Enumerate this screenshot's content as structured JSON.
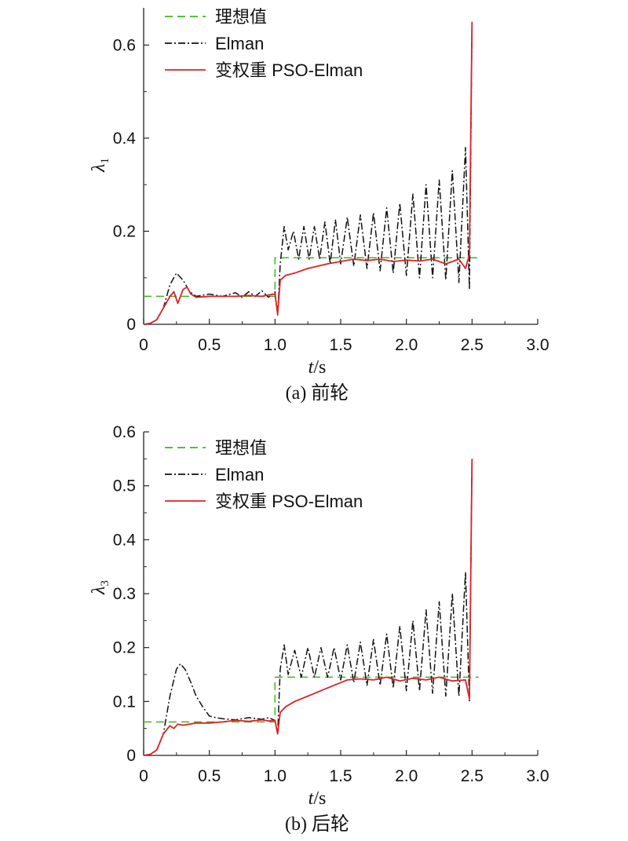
{
  "chart_data": [
    {
      "type": "line",
      "caption": "(a) 前轮",
      "xlabel_italic": "t",
      "xlabel_unit": "/s",
      "ylabel_main": "λ",
      "ylabel_sub": "1",
      "xlim": [
        0,
        3.0
      ],
      "ylim": [
        0,
        0.68
      ],
      "xticks": [
        "0",
        "0.5",
        "1.0",
        "1.5",
        "2.0",
        "2.5",
        "3.0"
      ],
      "yticks": [
        {
          "value": 0,
          "label": "0"
        },
        {
          "value": 0.2,
          "label": "0.2"
        },
        {
          "value": 0.4,
          "label": "0.4"
        },
        {
          "value": 0.6,
          "label": "0.6"
        }
      ],
      "legend_position": "top-left",
      "grid": false,
      "series": [
        {
          "name": "理想值",
          "color": "#3cb81e",
          "style": "dashed",
          "x": [
            0,
            1.0,
            1.0,
            2.55
          ],
          "y": [
            0.06,
            0.06,
            0.143,
            0.143
          ]
        },
        {
          "name": "Elman",
          "color": "#111111",
          "style": "dashdot",
          "x": [
            0.0,
            0.05,
            0.1,
            0.15,
            0.2,
            0.25,
            0.3,
            0.35,
            0.4,
            0.5,
            0.6,
            0.7,
            0.75,
            0.8,
            0.85,
            0.9,
            0.95,
            1.0,
            1.02,
            1.04,
            1.07,
            1.1,
            1.14,
            1.18,
            1.22,
            1.26,
            1.3,
            1.34,
            1.38,
            1.42,
            1.46,
            1.5,
            1.55,
            1.6,
            1.65,
            1.7,
            1.75,
            1.8,
            1.85,
            1.9,
            1.95,
            2.0,
            2.05,
            2.1,
            2.15,
            2.2,
            2.25,
            2.3,
            2.35,
            2.4,
            2.45,
            2.48,
            2.5
          ],
          "y": [
            0.0,
            0.002,
            0.01,
            0.035,
            0.085,
            0.11,
            0.095,
            0.07,
            0.06,
            0.065,
            0.06,
            0.068,
            0.058,
            0.07,
            0.06,
            0.072,
            0.058,
            0.07,
            0.02,
            0.13,
            0.21,
            0.16,
            0.2,
            0.14,
            0.21,
            0.14,
            0.21,
            0.14,
            0.22,
            0.13,
            0.225,
            0.13,
            0.23,
            0.125,
            0.235,
            0.12,
            0.24,
            0.115,
            0.25,
            0.11,
            0.26,
            0.105,
            0.28,
            0.1,
            0.3,
            0.1,
            0.31,
            0.095,
            0.33,
            0.09,
            0.38,
            0.075,
            0.65
          ]
        },
        {
          "name": "变权重 PSO-Elman",
          "color": "#e11f26",
          "style": "solid",
          "x": [
            0.0,
            0.05,
            0.1,
            0.15,
            0.2,
            0.23,
            0.26,
            0.3,
            0.33,
            0.36,
            0.4,
            0.5,
            0.6,
            0.7,
            0.8,
            0.9,
            0.95,
            1.0,
            1.02,
            1.04,
            1.08,
            1.15,
            1.25,
            1.4,
            1.5,
            1.6,
            1.7,
            1.8,
            1.9,
            2.0,
            2.1,
            2.2,
            2.3,
            2.4,
            2.45,
            2.48,
            2.5
          ],
          "y": [
            0.0,
            0.002,
            0.01,
            0.035,
            0.06,
            0.07,
            0.045,
            0.075,
            0.08,
            0.065,
            0.058,
            0.06,
            0.06,
            0.06,
            0.062,
            0.06,
            0.063,
            0.065,
            0.022,
            0.095,
            0.105,
            0.11,
            0.12,
            0.13,
            0.135,
            0.14,
            0.137,
            0.14,
            0.135,
            0.138,
            0.136,
            0.14,
            0.13,
            0.14,
            0.12,
            0.15,
            0.65
          ]
        }
      ]
    },
    {
      "type": "line",
      "caption": "(b) 后轮",
      "xlabel_italic": "t",
      "xlabel_unit": "/s",
      "ylabel_main": "λ",
      "ylabel_sub": "3",
      "xlim": [
        0,
        3.0
      ],
      "ylim": [
        0,
        0.6
      ],
      "xticks": [
        "0",
        "0.5",
        "1.0",
        "1.5",
        "2.0",
        "2.5",
        "3.0"
      ],
      "yticks": [
        {
          "value": 0,
          "label": "0"
        },
        {
          "value": 0.1,
          "label": "0.1"
        },
        {
          "value": 0.2,
          "label": "0.2"
        },
        {
          "value": 0.3,
          "label": "0.3"
        },
        {
          "value": 0.4,
          "label": "0.4"
        },
        {
          "value": 0.5,
          "label": "0.5"
        },
        {
          "value": 0.6,
          "label": "0.6"
        }
      ],
      "legend_position": "top-left",
      "grid": false,
      "series": [
        {
          "name": "理想值",
          "color": "#3cb81e",
          "style": "dashed",
          "x": [
            0,
            1.0,
            1.0,
            2.55
          ],
          "y": [
            0.062,
            0.062,
            0.145,
            0.145
          ]
        },
        {
          "name": "Elman",
          "color": "#111111",
          "style": "dashdot",
          "x": [
            0.0,
            0.05,
            0.1,
            0.15,
            0.2,
            0.25,
            0.28,
            0.32,
            0.36,
            0.4,
            0.45,
            0.5,
            0.55,
            0.6,
            0.7,
            0.8,
            0.9,
            0.95,
            1.0,
            1.02,
            1.04,
            1.07,
            1.1,
            1.15,
            1.2,
            1.25,
            1.3,
            1.35,
            1.4,
            1.45,
            1.5,
            1.55,
            1.6,
            1.65,
            1.7,
            1.75,
            1.8,
            1.85,
            1.9,
            1.95,
            2.0,
            2.05,
            2.1,
            2.15,
            2.2,
            2.25,
            2.3,
            2.35,
            2.4,
            2.45,
            2.48,
            2.5
          ],
          "y": [
            0.0,
            0.002,
            0.01,
            0.04,
            0.11,
            0.16,
            0.17,
            0.158,
            0.135,
            0.11,
            0.09,
            0.073,
            0.07,
            0.068,
            0.066,
            0.07,
            0.067,
            0.07,
            0.065,
            0.04,
            0.16,
            0.205,
            0.15,
            0.195,
            0.145,
            0.2,
            0.145,
            0.2,
            0.145,
            0.2,
            0.14,
            0.205,
            0.135,
            0.21,
            0.13,
            0.215,
            0.13,
            0.225,
            0.125,
            0.24,
            0.12,
            0.25,
            0.12,
            0.27,
            0.115,
            0.285,
            0.11,
            0.3,
            0.11,
            0.34,
            0.1,
            0.55
          ]
        },
        {
          "name": "变权重 PSO-Elman",
          "color": "#e11f26",
          "style": "solid",
          "x": [
            0.0,
            0.05,
            0.1,
            0.15,
            0.2,
            0.23,
            0.26,
            0.3,
            0.4,
            0.5,
            0.6,
            0.7,
            0.8,
            0.9,
            0.95,
            1.0,
            1.02,
            1.04,
            1.08,
            1.15,
            1.25,
            1.35,
            1.45,
            1.55,
            1.65,
            1.75,
            1.85,
            1.95,
            2.05,
            2.15,
            2.25,
            2.35,
            2.45,
            2.48,
            2.5
          ],
          "y": [
            0.0,
            0.002,
            0.01,
            0.04,
            0.055,
            0.05,
            0.058,
            0.056,
            0.06,
            0.06,
            0.062,
            0.065,
            0.063,
            0.066,
            0.064,
            0.065,
            0.04,
            0.08,
            0.09,
            0.1,
            0.11,
            0.12,
            0.13,
            0.14,
            0.142,
            0.14,
            0.145,
            0.138,
            0.143,
            0.14,
            0.145,
            0.138,
            0.14,
            0.105,
            0.55
          ]
        }
      ]
    }
  ]
}
